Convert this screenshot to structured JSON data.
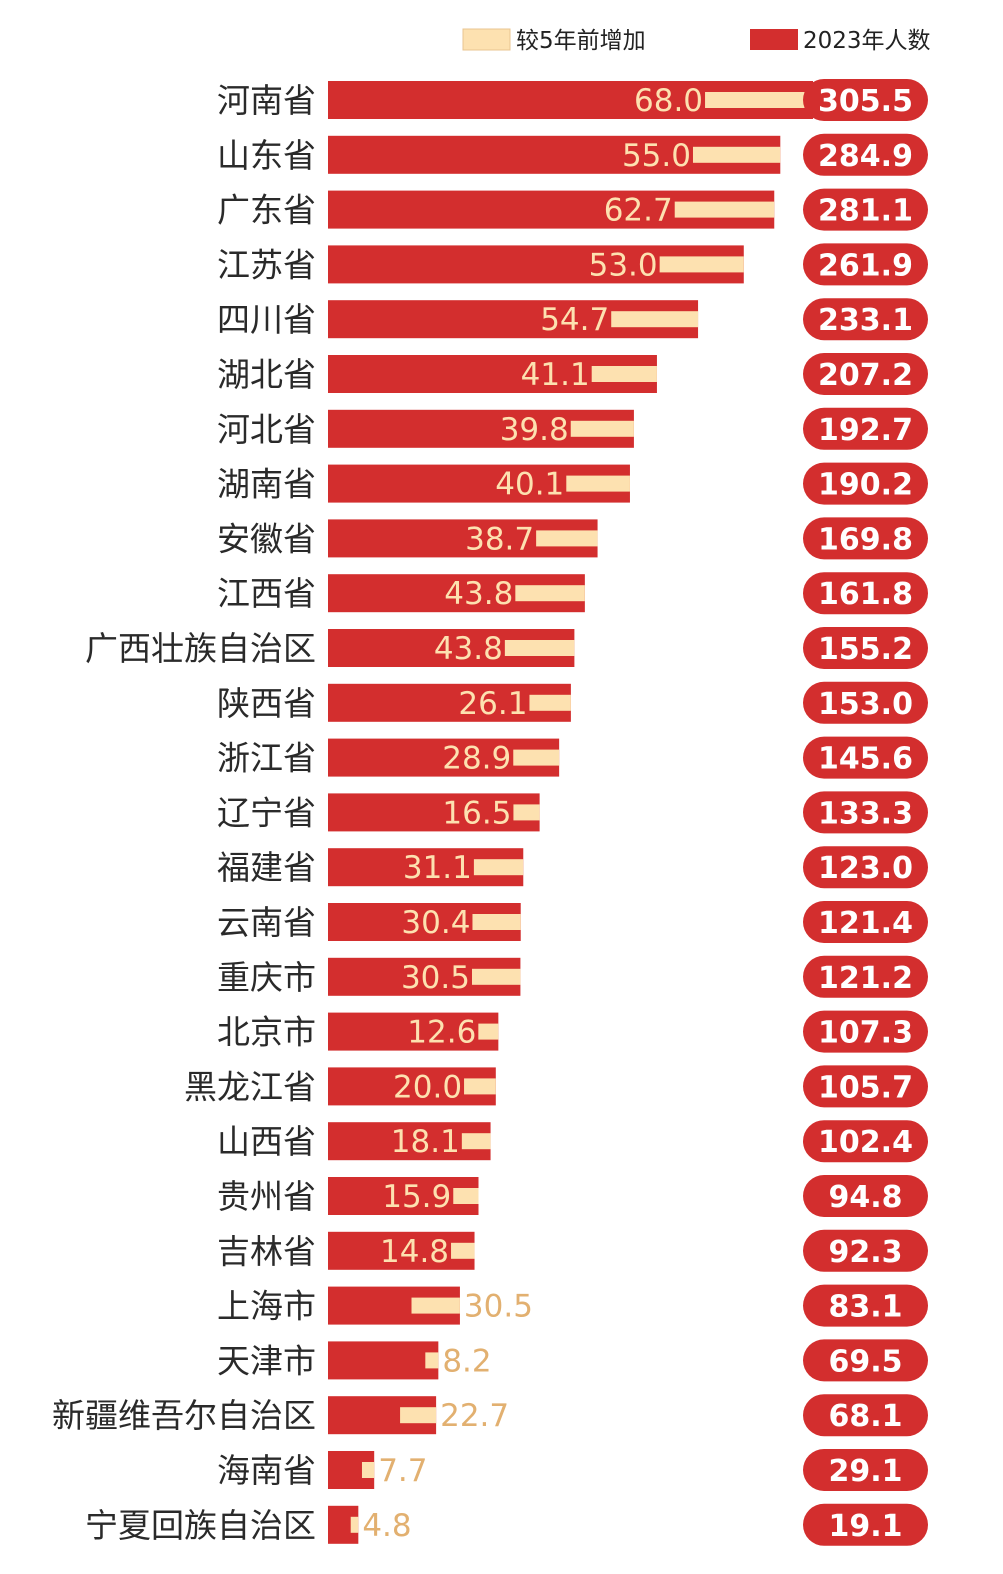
{
  "chart_data": {
    "type": "bar",
    "orientation": "horizontal",
    "legend_position": "top-right",
    "series": [
      {
        "name": "较5年前增加",
        "color": "#fde1b0",
        "values": [
          68.0,
          55.0,
          62.7,
          53.0,
          54.7,
          41.1,
          39.8,
          40.1,
          38.7,
          43.8,
          43.8,
          26.1,
          28.9,
          16.5,
          31.1,
          30.4,
          30.5,
          12.6,
          20.0,
          18.1,
          15.9,
          14.8,
          30.5,
          8.2,
          22.7,
          7.7,
          4.8
        ],
        "labels": [
          "68.0",
          "55.0",
          "62.7",
          "53.0",
          "54.7",
          "41.1",
          "39.8",
          "40.1",
          "38.7",
          "43.8",
          "43.8",
          "26.1",
          "28.9",
          "16.5",
          "31.1",
          "30.4",
          "30.5",
          "12.6",
          "20.0",
          "18.1",
          "15.9",
          "14.8",
          "30.5",
          "8.2",
          "22.7",
          "7.7",
          "4.8"
        ]
      },
      {
        "name": "2023年人数",
        "color": "#d32e2e",
        "values": [
          305.5,
          284.9,
          281.1,
          261.9,
          233.1,
          207.2,
          192.7,
          190.2,
          169.8,
          161.8,
          155.2,
          153.0,
          145.6,
          133.3,
          123.0,
          121.4,
          121.2,
          107.3,
          105.7,
          102.4,
          94.8,
          92.3,
          83.1,
          69.5,
          68.1,
          29.1,
          19.1
        ],
        "labels": [
          "305.5",
          "284.9",
          "281.1",
          "261.9",
          "233.1",
          "207.2",
          "192.7",
          "190.2",
          "169.8",
          "161.8",
          "155.2",
          "153.0",
          "145.6",
          "133.3",
          "123.0",
          "121.4",
          "121.2",
          "107.3",
          "105.7",
          "102.4",
          "94.8",
          "92.3",
          "83.1",
          "69.5",
          "68.1",
          "29.1",
          "19.1"
        ]
      }
    ],
    "categories": [
      "河南省",
      "山东省",
      "广东省",
      "江苏省",
      "四川省",
      "湖北省",
      "河北省",
      "湖南省",
      "安徽省",
      "江西省",
      "广西壮族自治区",
      "陕西省",
      "浙江省",
      "辽宁省",
      "福建省",
      "云南省",
      "重庆市",
      "北京市",
      "黑龙江省",
      "山西省",
      "贵州省",
      "吉林省",
      "上海市",
      "天津市",
      "新疆维吾尔自治区",
      "海南省",
      "宁夏回族自治区"
    ],
    "title": "",
    "xlabel": "",
    "ylabel": "",
    "xlim": [
      0,
      305.5
    ],
    "grid": false
  }
}
